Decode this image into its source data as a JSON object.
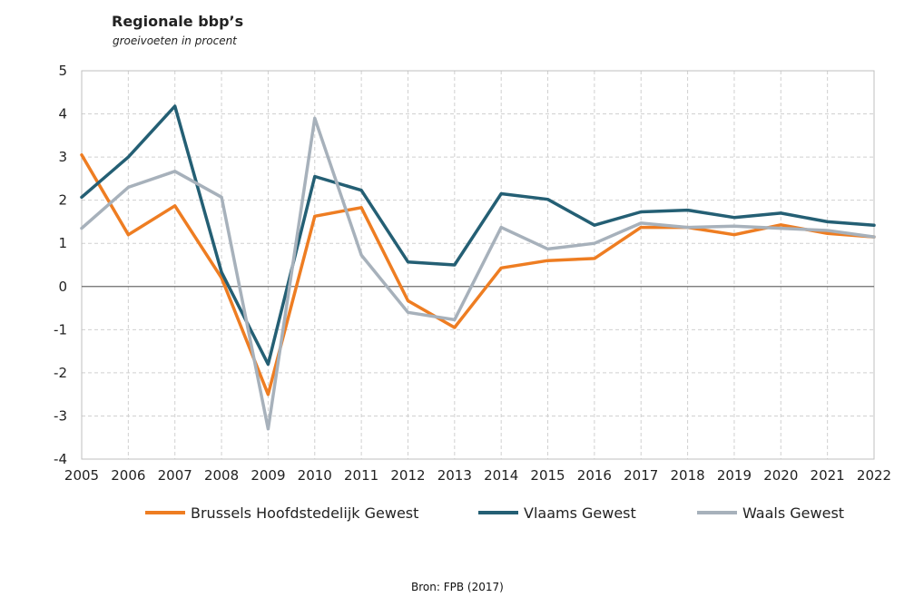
{
  "chart_data": {
    "type": "line",
    "title": "Regionale bbp’s",
    "subtitle": "groeivoeten in procent",
    "xlabel": "",
    "ylabel": "",
    "x": [
      "2005",
      "2006",
      "2007",
      "2008",
      "2009",
      "2010",
      "2011",
      "2012",
      "2013",
      "2014",
      "2015",
      "2016",
      "2017",
      "2018",
      "2019",
      "2020",
      "2021",
      "2022"
    ],
    "ylim": [
      -4,
      5
    ],
    "yticks": [
      "5",
      "4",
      "3",
      "2",
      "1",
      "0",
      "-1",
      "-2",
      "-3",
      "-4"
    ],
    "grid": true,
    "legend_position": "bottom",
    "series": [
      {
        "name": "Brussels Hoofdstedelijk Gewest",
        "color": "#ee7d22",
        "values": [
          3.05,
          1.2,
          1.87,
          0.2,
          -2.5,
          1.63,
          1.83,
          -0.33,
          -0.95,
          0.43,
          0.6,
          0.65,
          1.37,
          1.37,
          1.2,
          1.43,
          1.23,
          1.15
        ]
      },
      {
        "name": "Vlaams Gewest",
        "color": "#245f74",
        "values": [
          2.07,
          3.0,
          4.18,
          0.33,
          -1.8,
          2.55,
          2.23,
          0.57,
          0.5,
          2.15,
          2.02,
          1.42,
          1.73,
          1.77,
          1.6,
          1.7,
          1.5,
          1.42
        ]
      },
      {
        "name": "Waals Gewest",
        "color": "#a7b1bb",
        "values": [
          1.35,
          2.3,
          2.67,
          2.07,
          -3.3,
          3.9,
          0.73,
          -0.6,
          -0.77,
          1.37,
          0.87,
          1.0,
          1.47,
          1.37,
          1.4,
          1.35,
          1.3,
          1.15
        ]
      }
    ],
    "source": "Bron:  FPB (2017)"
  }
}
